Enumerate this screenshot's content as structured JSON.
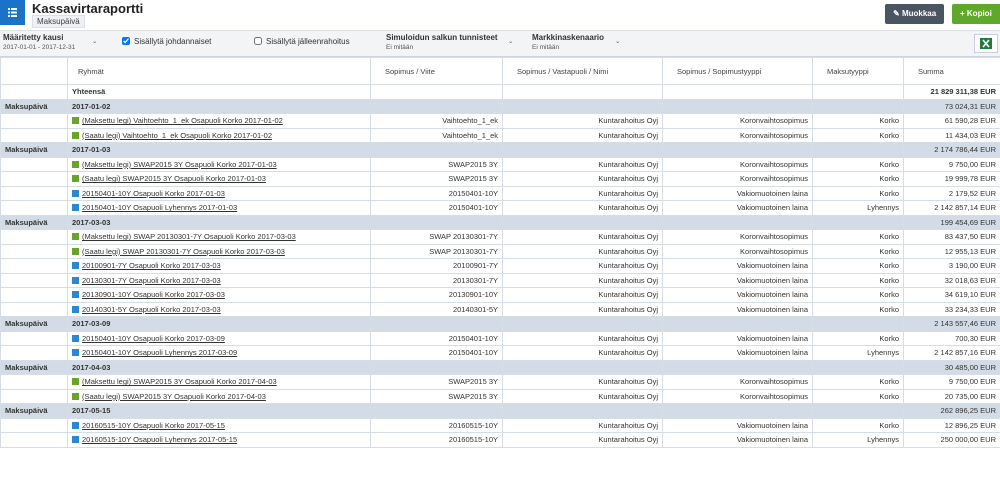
{
  "header": {
    "title": "Kassavirtaraportti",
    "subtitle": "Maksupäivä"
  },
  "buttons": [
    "Muokkaa",
    "Kopioi"
  ],
  "toolbar": {
    "period": {
      "label": "Määritetty kausi",
      "value": "2017-01-01 - 2017-12-31"
    },
    "checkboxes": [
      {
        "label": "Sisällytä johdannaiset",
        "checked": true
      },
      {
        "label": "Sisällytä jälleenrahoitus",
        "checked": false
      }
    ],
    "dropdowns": [
      {
        "label": "Simuloidun salkun tunnisteet",
        "value": "Ei mitään"
      },
      {
        "label": "Markkinaskenaario",
        "value": "Ei mitään"
      }
    ]
  },
  "table": {
    "columns": [
      "Ryhmät",
      "Sopimus / Viite",
      "Sopimus / Vastapuoli / Nimi",
      "Sopimus / Sopimustyyppi",
      "Maksutyyppi",
      "Summa"
    ],
    "total": {
      "label": "Yhteensä",
      "sum": "21 829 311,38 EUR"
    },
    "groups": [
      {
        "type": "Maksupäivä",
        "date": "2017-01-02",
        "sum": "73 024,31 EUR",
        "rows": [
          {
            "marker": "#6aa329",
            "cells": [
              "(Maksettu legi) Vaihtoehto_1_ek Osapuoli Korko 2017-01-02",
              "Vaihtoehto_1_ek",
              "Kuntarahoitus Oyj",
              "Koronvaihtosopimus",
              "Korko",
              "61 590,28 EUR"
            ]
          },
          {
            "marker": "#6aa329",
            "cells": [
              "(Saatu legi) Vaihtoehto_1_ek Osapuoli Korko 2017-01-02",
              "Vaihtoehto_1_ek",
              "Kuntarahoitus Oyj",
              "Koronvaihtosopimus",
              "Korko",
              "11 434,03 EUR"
            ]
          }
        ]
      },
      {
        "type": "Maksupäivä",
        "date": "2017-01-03",
        "sum": "2 174 786,44 EUR",
        "rows": [
          {
            "marker": "#6aa329",
            "cells": [
              "(Maksettu legi) SWAP2015 3Y Osapuoli Korko 2017-01-03",
              "SWAP2015 3Y",
              "Kuntarahoitus Oyj",
              "Koronvaihtosopimus",
              "Korko",
              "9 750,00 EUR"
            ]
          },
          {
            "marker": "#6aa329",
            "cells": [
              "(Saatu legi) SWAP2015 3Y Osapuoli Korko 2017-01-03",
              "SWAP2015 3Y",
              "Kuntarahoitus Oyj",
              "Koronvaihtosopimus",
              "Korko",
              "19 999,78 EUR"
            ]
          },
          {
            "marker": "#2a87d0",
            "cells": [
              "20150401-10Y Osapuoli Korko 2017-01-03",
              "20150401-10Y",
              "Kuntarahoitus Oyj",
              "Vakiomuotoinen laina",
              "Korko",
              "2 179,52 EUR"
            ]
          },
          {
            "marker": "#2a87d0",
            "cells": [
              "20150401-10Y Osapuoli Lyhennys 2017-01-03",
              "20150401-10Y",
              "Kuntarahoitus Oyj",
              "Vakiomuotoinen laina",
              "Lyhennys",
              "2 142 857,14 EUR"
            ]
          }
        ]
      },
      {
        "type": "Maksupäivä",
        "date": "2017-03-03",
        "sum": "199 454,69 EUR",
        "rows": [
          {
            "marker": "#6aa329",
            "cells": [
              "(Maksettu legi) SWAP 20130301-7Y Osapuoli Korko 2017-03-03",
              "SWAP 20130301-7Y",
              "Kuntarahoitus Oyj",
              "Koronvaihtosopimus",
              "Korko",
              "83 437,50 EUR"
            ]
          },
          {
            "marker": "#6aa329",
            "cells": [
              "(Saatu legi) SWAP 20130301-7Y Osapuoli Korko 2017-03-03",
              "SWAP 20130301-7Y",
              "Kuntarahoitus Oyj",
              "Koronvaihtosopimus",
              "Korko",
              "12 955,13 EUR"
            ]
          },
          {
            "marker": "#2a87d0",
            "cells": [
              "20100901-7Y Osapuoli Korko 2017-03-03",
              "20100901-7Y",
              "Kuntarahoitus Oyj",
              "Vakiomuotoinen laina",
              "Korko",
              "3 190,00 EUR"
            ]
          },
          {
            "marker": "#2a87d0",
            "cells": [
              "20130301-7Y Osapuoli Korko 2017-03-03",
              "20130301-7Y",
              "Kuntarahoitus Oyj",
              "Vakiomuotoinen laina",
              "Korko",
              "32 018,63 EUR"
            ]
          },
          {
            "marker": "#2a87d0",
            "cells": [
              "20130901-10Y Osapuoli Korko 2017-03-03",
              "20130901-10Y",
              "Kuntarahoitus Oyj",
              "Vakiomuotoinen laina",
              "Korko",
              "34 619,10 EUR"
            ]
          },
          {
            "marker": "#2a87d0",
            "cells": [
              "20140301-5Y Osapuoli Korko 2017-03-03",
              "20140301-5Y",
              "Kuntarahoitus Oyj",
              "Vakiomuotoinen laina",
              "Korko",
              "33 234,33 EUR"
            ]
          }
        ]
      },
      {
        "type": "Maksupäivä",
        "date": "2017-03-09",
        "sum": "2 143 557,46 EUR",
        "rows": [
          {
            "marker": "#2a87d0",
            "cells": [
              "20150401-10Y Osapuoli Korko 2017-03-09",
              "20150401-10Y",
              "Kuntarahoitus Oyj",
              "Vakiomuotoinen laina",
              "Korko",
              "700,30 EUR"
            ]
          },
          {
            "marker": "#2a87d0",
            "cells": [
              "20150401-10Y Osapuoli Lyhennys 2017-03-09",
              "20150401-10Y",
              "Kuntarahoitus Oyj",
              "Vakiomuotoinen laina",
              "Lyhennys",
              "2 142 857,16 EUR"
            ]
          }
        ]
      },
      {
        "type": "Maksupäivä",
        "date": "2017-04-03",
        "sum": "30 485,00 EUR",
        "rows": [
          {
            "marker": "#6aa329",
            "cells": [
              "(Maksettu legi) SWAP2015 3Y Osapuoli Korko 2017-04-03",
              "SWAP2015 3Y",
              "Kuntarahoitus Oyj",
              "Koronvaihtosopimus",
              "Korko",
              "9 750,00 EUR"
            ]
          },
          {
            "marker": "#6aa329",
            "cells": [
              "(Saatu legi) SWAP2015 3Y Osapuoli Korko 2017-04-03",
              "SWAP2015 3Y",
              "Kuntarahoitus Oyj",
              "Koronvaihtosopimus",
              "Korko",
              "20 735,00 EUR"
            ]
          }
        ]
      },
      {
        "type": "Maksupäivä",
        "date": "2017-05-15",
        "sum": "262 896,25 EUR",
        "rows": [
          {
            "marker": "#2a87d0",
            "cells": [
              "20160515-10Y Osapuoli Korko 2017-05-15",
              "20160515-10Y",
              "Kuntarahoitus Oyj",
              "Vakiomuotoinen laina",
              "Korko",
              "12 896,25 EUR"
            ]
          },
          {
            "marker": "#2a87d0",
            "cells": [
              "20160515-10Y Osapuoli Lyhennys 2017-05-15",
              "20160515-10Y",
              "Kuntarahoitus Oyj",
              "Vakiomuotoinen laina",
              "Lyhennys",
              "250 000,00 EUR"
            ]
          }
        ]
      }
    ]
  }
}
